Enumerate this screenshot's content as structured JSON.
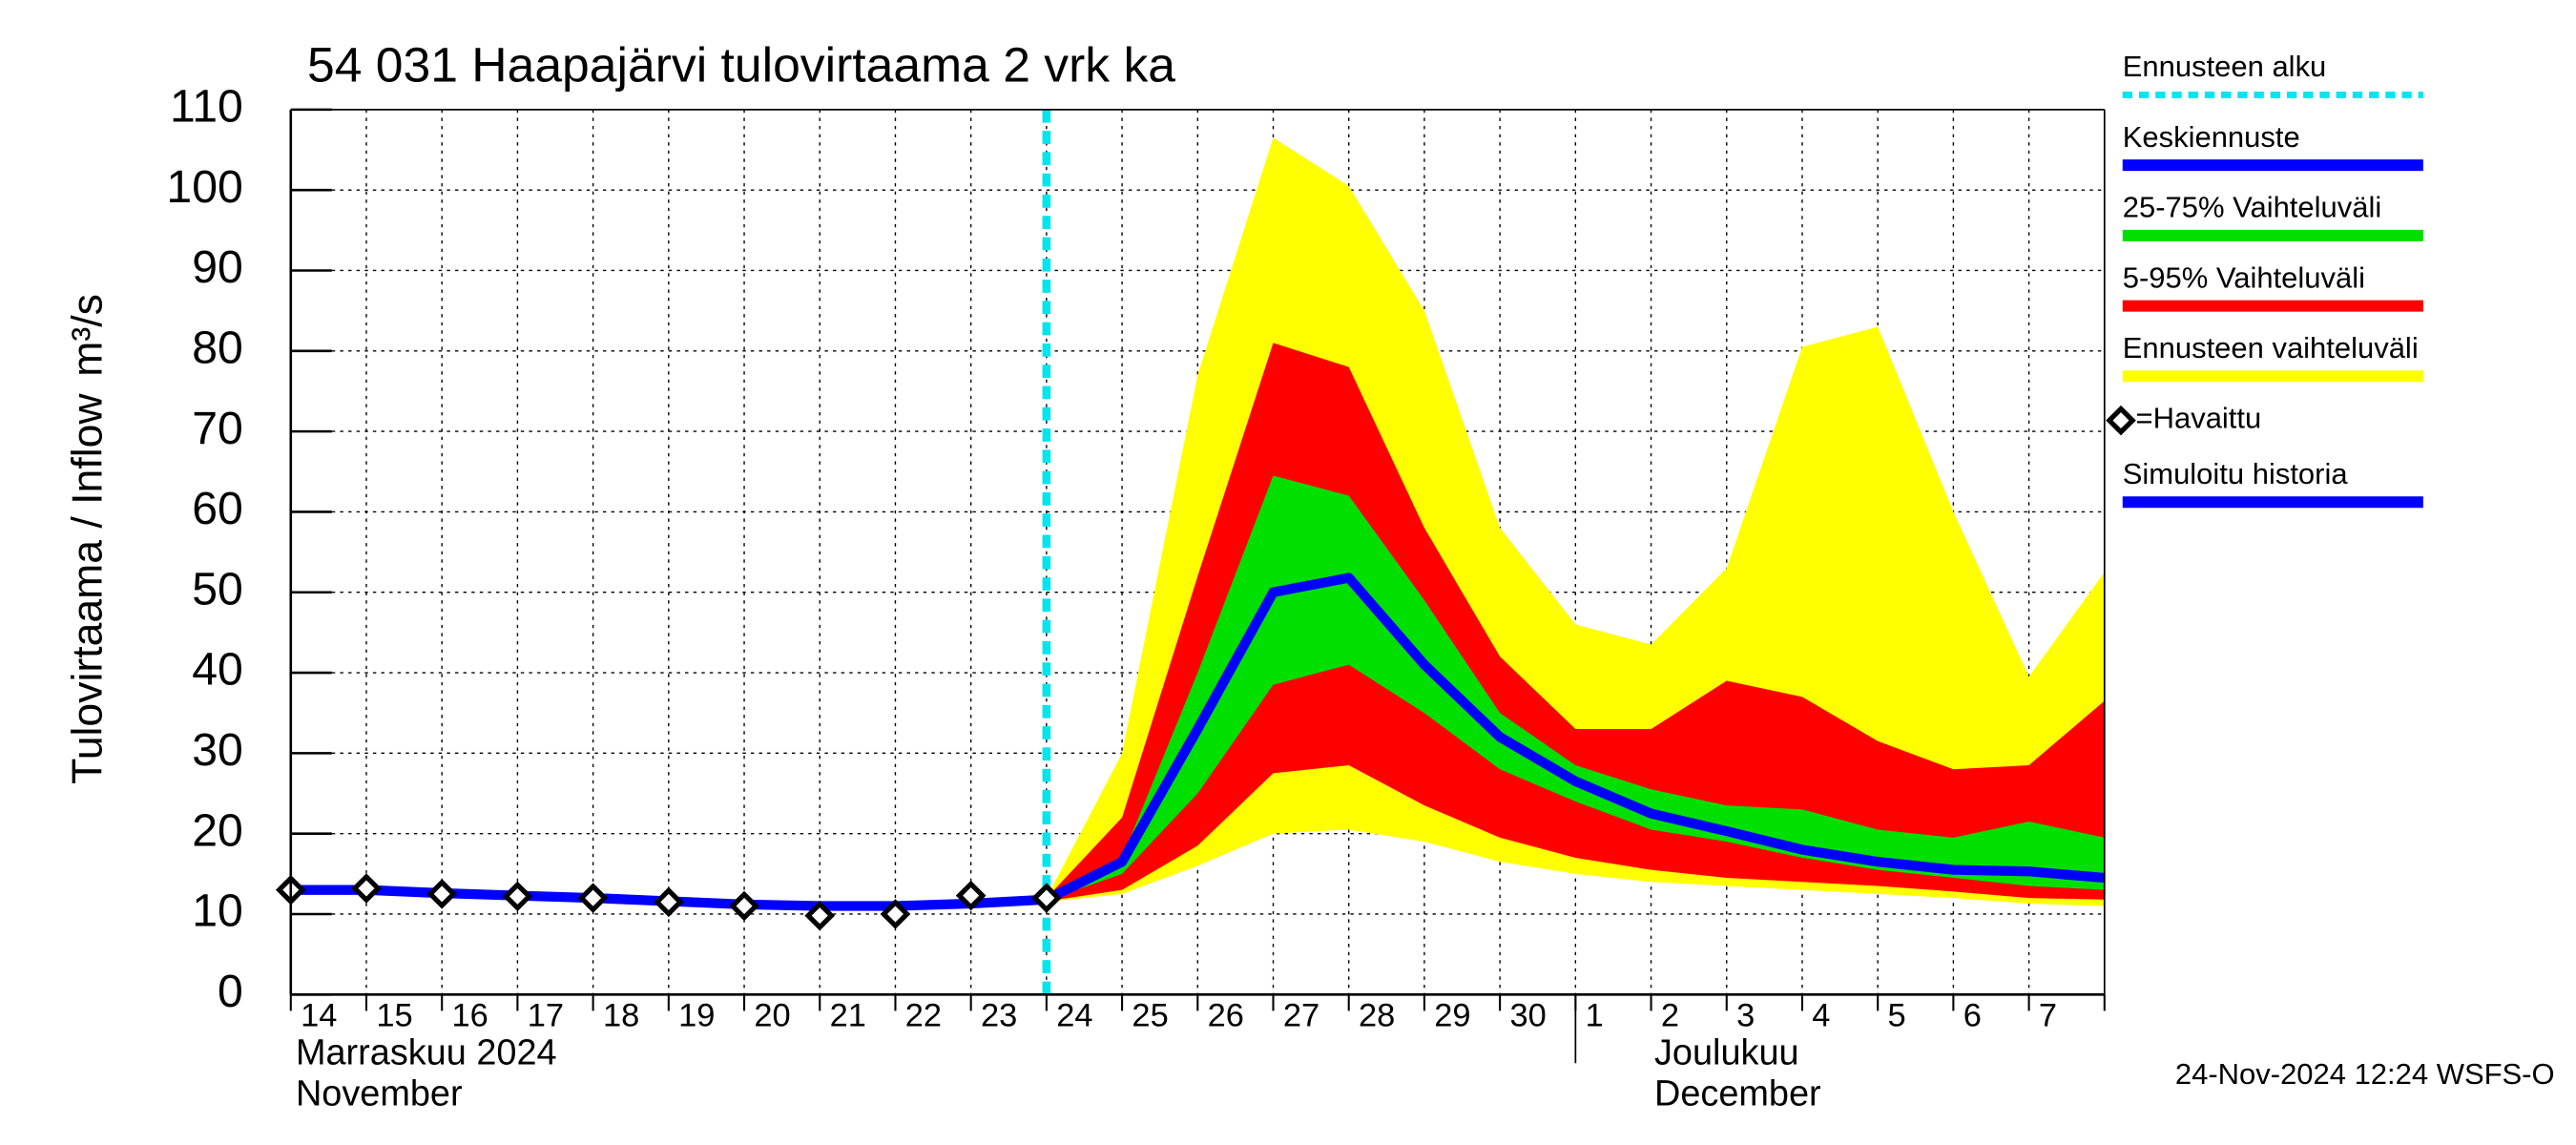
{
  "chart_data": {
    "type": "line",
    "title": "54 031 Haapajärvi tulovirtaama 2 vrk ka",
    "y_label": "Tulovirtaama / Inflow",
    "y_unit": "m³/s",
    "categories": [
      "14",
      "15",
      "16",
      "17",
      "18",
      "19",
      "20",
      "21",
      "22",
      "23",
      "24",
      "25",
      "26",
      "27",
      "28",
      "29",
      "30",
      "1",
      "2",
      "3",
      "4",
      "5",
      "6",
      "7",
      null
    ],
    "month_labels": [
      "Marraskuu 2024",
      "November",
      "Joulukuu",
      "December"
    ],
    "timestamp": "24-Nov-2024 12:24 WSFS-O",
    "ylim": [
      0,
      110
    ],
    "yticks": [
      0,
      10,
      20,
      30,
      40,
      50,
      60,
      70,
      80,
      90,
      100,
      110
    ],
    "grid": true,
    "series": [
      {
        "name": "Ennusteen alku",
        "kind": "vline",
        "color": "#00e5ee",
        "x": 10
      },
      {
        "name": "Keskiennuste",
        "kind": "line",
        "color": "#0000ff",
        "values": [
          null,
          null,
          null,
          null,
          null,
          null,
          null,
          null,
          null,
          null,
          11.8,
          16.5,
          33,
          50,
          51.8,
          41,
          32,
          26.5,
          22.5,
          20.3,
          18,
          16.5,
          15.5,
          15.3,
          14.5
        ]
      },
      {
        "name": "25-75% Vaihteluväli",
        "kind": "band",
        "color": "#00e000",
        "values": [
          null,
          null,
          null,
          null,
          null,
          null,
          null,
          null,
          null,
          null,
          11.9,
          17,
          40,
          64.5,
          62,
          49,
          35,
          28.5,
          25.5,
          23.5,
          23,
          20.5,
          19.5,
          21.5,
          19.5
        ],
        "low": [
          null,
          null,
          null,
          null,
          null,
          null,
          null,
          null,
          null,
          null,
          11.7,
          15,
          25,
          38.5,
          41,
          35,
          28,
          24,
          20.5,
          19,
          17,
          15.5,
          14.5,
          13.5,
          13
        ]
      },
      {
        "name": "5-95% Vaihteluväli",
        "kind": "band",
        "color": "#ff0000",
        "values": [
          null,
          null,
          null,
          null,
          null,
          null,
          null,
          null,
          null,
          null,
          12,
          22,
          52,
          81,
          78,
          58,
          42,
          33,
          33,
          39,
          37,
          31.5,
          28,
          28.5,
          36.5
        ],
        "low": [
          null,
          null,
          null,
          null,
          null,
          null,
          null,
          null,
          null,
          null,
          11.6,
          13,
          18.5,
          27.5,
          28.5,
          23.5,
          19.5,
          17,
          15.5,
          14.5,
          14,
          13.5,
          12.8,
          12,
          11.8
        ]
      },
      {
        "name": "Ennusteen vaihteluväli",
        "kind": "band",
        "color": "#ffff00",
        "values": [
          null,
          null,
          null,
          null,
          null,
          null,
          null,
          null,
          null,
          null,
          12,
          30,
          77,
          106.5,
          100.5,
          85,
          58,
          46,
          43.5,
          53,
          80.5,
          83,
          60,
          39.5,
          52.5
        ],
        "low": [
          null,
          null,
          null,
          null,
          null,
          null,
          null,
          null,
          null,
          null,
          11.5,
          12.5,
          16,
          20,
          20.5,
          19,
          16.5,
          15,
          14,
          13.5,
          13,
          12.5,
          12,
          11.3,
          11
        ]
      },
      {
        "name": "=Havaittu",
        "kind": "marker",
        "color": "#000000",
        "values": [
          13,
          13.2,
          12.5,
          12.2,
          12,
          11.5,
          11,
          9.8,
          10,
          12.3,
          12,
          null,
          null,
          null,
          null,
          null,
          null,
          null,
          null,
          null,
          null,
          null,
          null,
          null,
          null
        ]
      },
      {
        "name": "Simuloitu historia",
        "kind": "line",
        "color": "#0000ff",
        "values": [
          13,
          13,
          12.6,
          12.3,
          12,
          11.6,
          11.2,
          11,
          11,
          11.3,
          11.8,
          null,
          null,
          null,
          null,
          null,
          null,
          null,
          null,
          null,
          null,
          null,
          null,
          null,
          null
        ]
      }
    ]
  }
}
